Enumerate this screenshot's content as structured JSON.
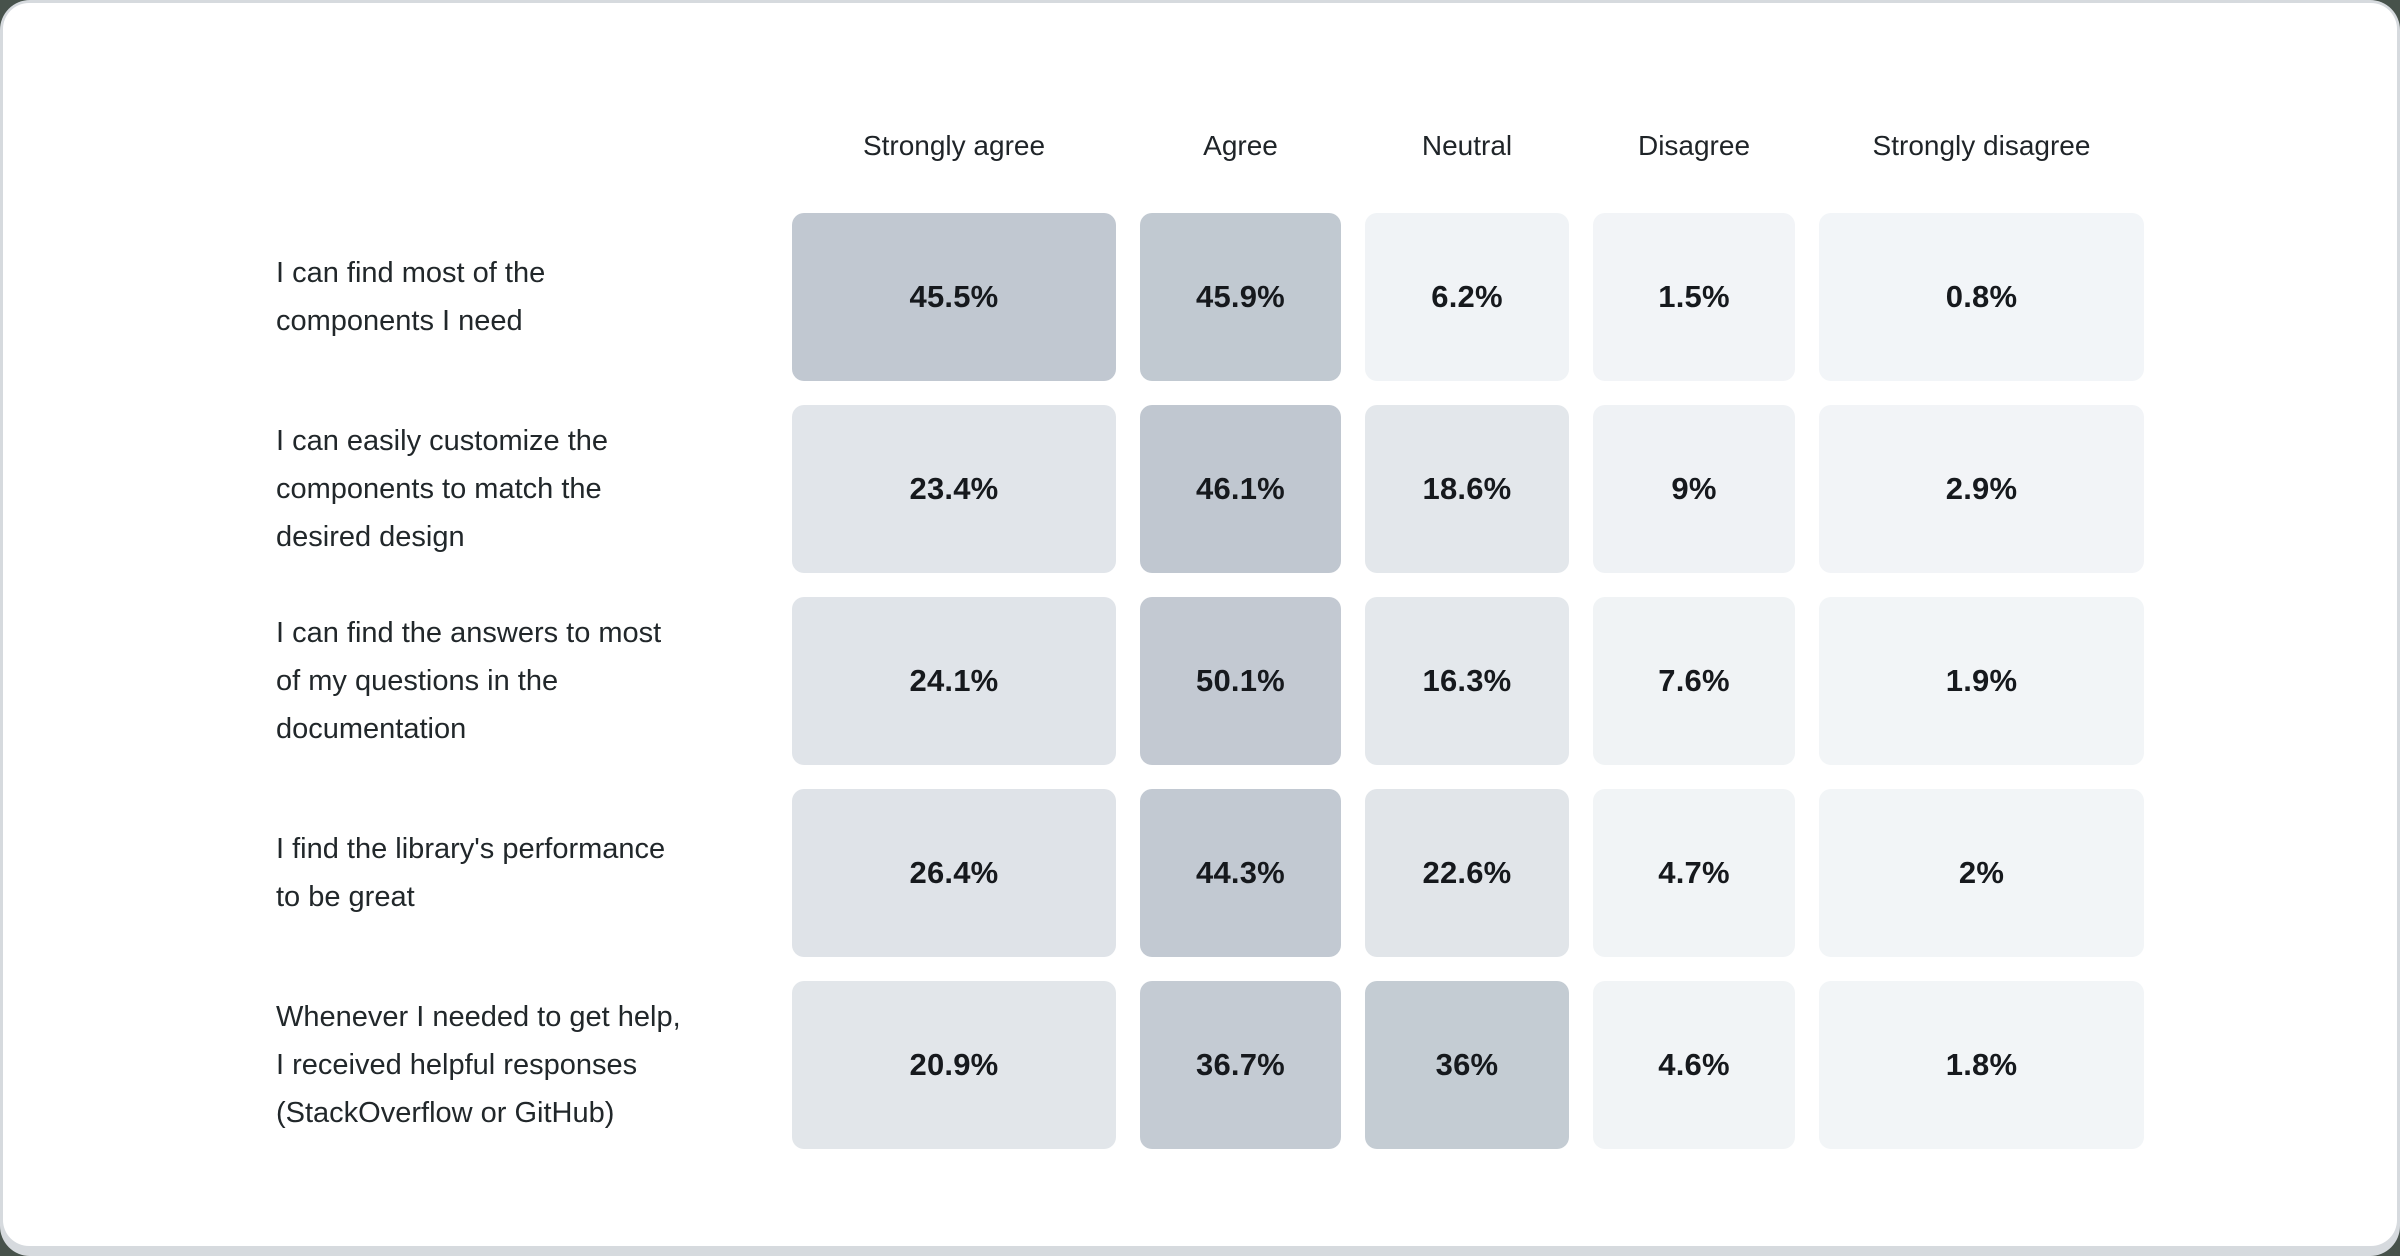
{
  "page": {
    "background_color": "#47524b",
    "rim_color": "#d6dade",
    "card_color": "#ffffff"
  },
  "chart_data": {
    "type": "heatmap",
    "title": "",
    "value_unit": "%",
    "legend_position": "none",
    "grid": false,
    "palette": {
      "min_color": "#f2f5f8",
      "max_color": "#bdc5ce"
    },
    "columns": [
      "Strongly agree",
      "Agree",
      "Neutral",
      "Disagree",
      "Strongly disagree"
    ],
    "rows": [
      {
        "label": "I can find most of the\ncomponents I need",
        "label_plain": "I can find most of the components I need",
        "values": [
          45.5,
          45.9,
          6.2,
          1.5,
          0.8
        ],
        "display": [
          "45.5%",
          "45.9%",
          "6.2%",
          "1.5%",
          "0.8%"
        ],
        "colors": [
          "#c1c8d1",
          "#c1c9d1",
          "#f0f3f6",
          "#f2f4f7",
          "#f2f5f8"
        ]
      },
      {
        "label": "I can easily customize the\ncomponents to match the\ndesired design",
        "label_plain": "I can easily customize the components to match the desired design",
        "values": [
          23.4,
          46.1,
          18.6,
          9,
          2.9
        ],
        "display": [
          "23.4%",
          "46.1%",
          "18.6%",
          "9%",
          "2.9%"
        ],
        "colors": [
          "#e1e5ea",
          "#c0c7d0",
          "#e3e7eb",
          "#eff2f5",
          "#f2f4f7"
        ]
      },
      {
        "label": "I can find the answers to most\nof my questions in the\ndocumentation",
        "label_plain": "I can find the answers to most of my questions in the documentation",
        "values": [
          24.1,
          50.1,
          16.3,
          7.6,
          1.9
        ],
        "display": [
          "24.1%",
          "50.1%",
          "16.3%",
          "7.6%",
          "1.9%"
        ],
        "colors": [
          "#e0e4e9",
          "#c3c9d2",
          "#e4e8ec",
          "#f0f3f5",
          "#f2f5f7"
        ]
      },
      {
        "label": "I find the library's performance\nto be great",
        "label_plain": "I find the library's performance to be great",
        "values": [
          26.4,
          44.3,
          22.6,
          4.7,
          2
        ],
        "display": [
          "26.4%",
          "44.3%",
          "22.6%",
          "4.7%",
          "2%"
        ],
        "colors": [
          "#dfe3e8",
          "#c2c9d2",
          "#e1e5e9",
          "#f1f4f6",
          "#f2f5f7"
        ]
      },
      {
        "label": "Whenever I needed to get help,\nI received helpful responses\n(StackOverflow or GitHub)",
        "label_plain": "Whenever I needed to get help, I received helpful responses (StackOverflow or GitHub)",
        "values": [
          20.9,
          36.7,
          36,
          4.6,
          1.8
        ],
        "display": [
          "20.9%",
          "36.7%",
          "36%",
          "4.6%",
          "1.8%"
        ],
        "colors": [
          "#e2e6ea",
          "#c4cbd3",
          "#c4ccd3",
          "#f1f4f6",
          "#f2f5f7"
        ]
      }
    ]
  }
}
